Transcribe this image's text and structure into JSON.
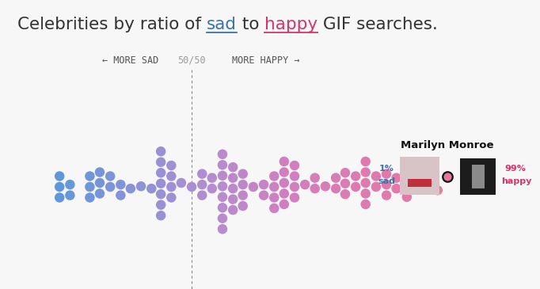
{
  "chart_data": {
    "type": "beeswarm",
    "title": "Celebrities by ratio of sad to happy GIF searches.",
    "title_highlights": [
      {
        "text": "sad",
        "color": "#3a72b0"
      },
      {
        "text": "happy",
        "color": "#d6336c"
      }
    ],
    "x": [
      24.7,
      24.7,
      24.7,
      26.7,
      26.7,
      30.5,
      30.5,
      30.5,
      32.4,
      32.4,
      32.4,
      34.4,
      34.4,
      36.4,
      36.4,
      38.3,
      40.3,
      42.3,
      44.1,
      44.1,
      44.1,
      44.1,
      44.1,
      44.1,
      44.1,
      46.1,
      46.1,
      46.1,
      46.1,
      48.0,
      50.0,
      52.0,
      52.0,
      52.0,
      53.9,
      53.9,
      55.9,
      55.9,
      55.9,
      55.9,
      55.9,
      55.9,
      55.9,
      55.9,
      57.9,
      57.9,
      57.9,
      57.9,
      57.9,
      59.8,
      59.8,
      59.8,
      59.8,
      61.8,
      63.8,
      63.8,
      65.8,
      65.8,
      65.8,
      65.8,
      67.7,
      67.7,
      67.7,
      67.7,
      67.7,
      69.7,
      69.7,
      69.7,
      69.7,
      71.7,
      73.6,
      73.6,
      75.6,
      77.6,
      77.6,
      79.4,
      79.4,
      79.4,
      81.4,
      81.4,
      83.3,
      83.3,
      83.3,
      83.3,
      83.3,
      85.3,
      85.3,
      87.3,
      87.3,
      87.3,
      89.2,
      89.2,
      91.2,
      91.2,
      93.2,
      93.2,
      95.2,
      97.1
    ],
    "xlim": [
      13.3,
      116.7
    ],
    "tick_labels": false,
    "annotations": [
      {
        "text": "← MORE SAD"
      },
      {
        "text": "50/50",
        "x": 50
      },
      {
        "text": "MORE HAPPY →"
      }
    ],
    "highlight": {
      "name": "Marilyn Monroe",
      "x": 99,
      "sad_label": "1%",
      "sad_text": "sad",
      "happy_label": "99%",
      "happy_text": "happy",
      "color": "#e8779f"
    }
  }
}
